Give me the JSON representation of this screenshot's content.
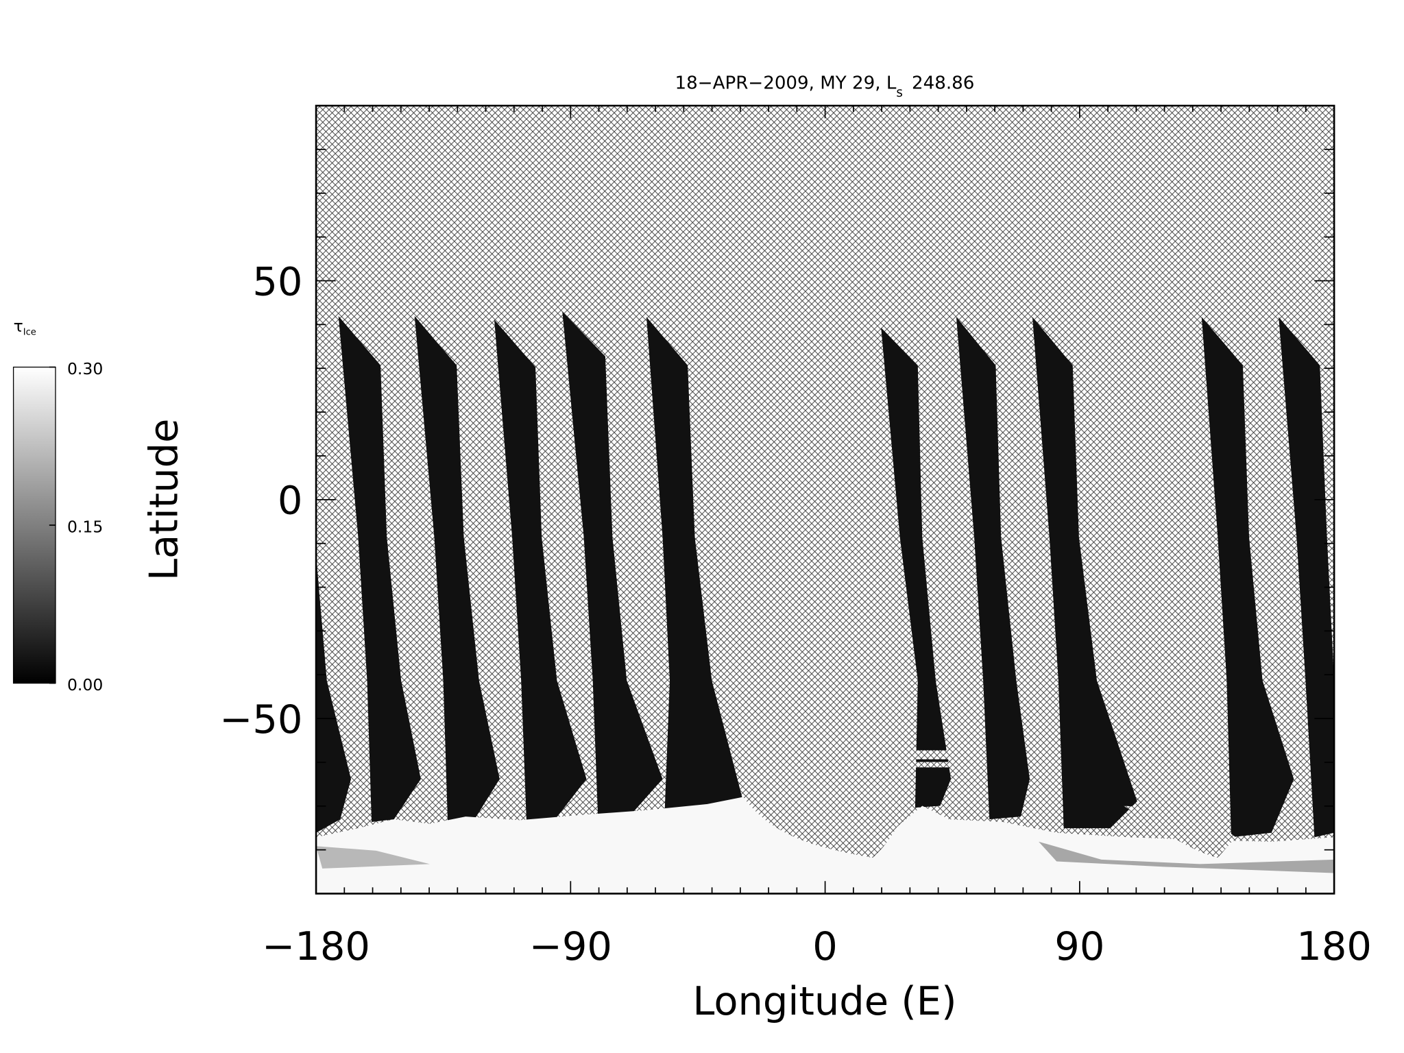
{
  "chart_data": {
    "type": "map",
    "title": "18−APR−2009, MY 29,  L",
    "title_subscript": "s",
    "title_value": "248.86",
    "xlabel": "Longitude (E)",
    "ylabel": "Latitude",
    "xlim": [
      -180,
      180
    ],
    "ylim": [
      -90,
      90
    ],
    "xticks": [
      {
        "value": -180,
        "label": "−180"
      },
      {
        "value": -90,
        "label": "−90"
      },
      0,
      90,
      180
    ],
    "yticks": [
      {
        "value": -50,
        "label": "−50"
      },
      0,
      50
    ],
    "xminorticks": [
      -170,
      -160,
      -150,
      -140,
      -130,
      -120,
      -110,
      -100,
      -80,
      -70,
      -60,
      -50,
      -40,
      -30,
      -20,
      -10,
      10,
      20,
      30,
      40,
      50,
      60,
      70,
      80,
      100,
      110,
      120,
      130,
      140,
      150,
      160,
      170
    ],
    "yminorticks": [
      -80,
      -70,
      -60,
      -40,
      -30,
      -20,
      -10,
      10,
      20,
      30,
      40,
      60,
      70,
      80
    ],
    "colorbar": {
      "label": "τ",
      "subscript": "Ice",
      "lim": [
        0,
        0.3
      ],
      "ticks": [
        {
          "value": 0,
          "label": "0.00"
        },
        {
          "value": 0.15,
          "label": "0.15"
        },
        {
          "value": 0.3,
          "label": "0.30"
        }
      ],
      "colors": [
        "#000000",
        "#ffffff"
      ]
    }
  }
}
